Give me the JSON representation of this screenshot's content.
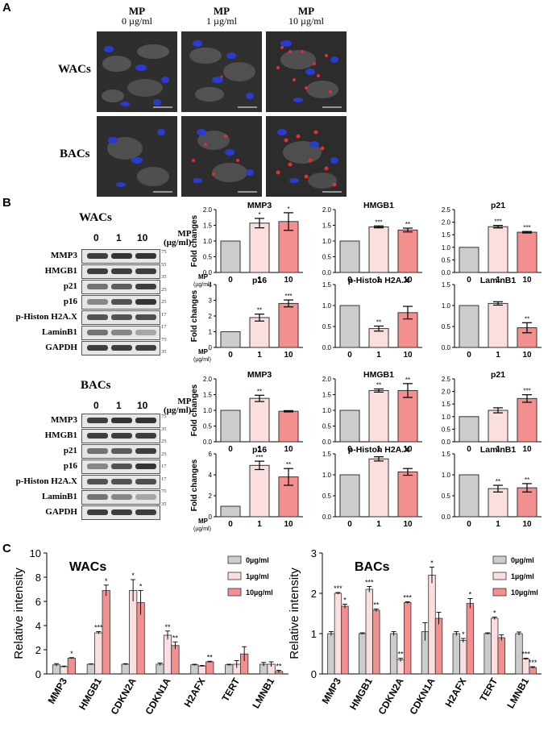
{
  "panel_letters": {
    "a": "A",
    "b": "B",
    "c": "C"
  },
  "panel_a": {
    "columns": [
      {
        "title": "MP",
        "conc": "0 µg/ml"
      },
      {
        "title": "MP",
        "conc": "1 µg/ml"
      },
      {
        "title": "MP",
        "conc": "10 µg/ml"
      }
    ],
    "rows": [
      "WACs",
      "BACs"
    ]
  },
  "panel_b": {
    "wacs": {
      "title": "WACs",
      "lanes": [
        "0",
        "1",
        "10"
      ],
      "mp_label": "MP",
      "unit": "(µg/ml)",
      "proteins": [
        "MMP3",
        "HMGB1",
        "p21",
        "p16",
        "p-Histon H2A.X",
        "LaminB1",
        "GAPDH"
      ],
      "kda": [
        "75",
        "55",
        "35",
        "25",
        "25",
        "17",
        "17",
        "75",
        "35"
      ]
    },
    "bacs": {
      "title": "BACs",
      "lanes": [
        "0",
        "1",
        "10"
      ],
      "mp_label": "MP",
      "unit": "(µg/ml)",
      "proteins": [
        "MMP3",
        "HMGB1",
        "p21",
        "p16",
        "p-Histon H2A.X",
        "LaminB1",
        "GAPDH"
      ],
      "kda": [
        "75",
        "35",
        "25",
        "25",
        "17",
        "17",
        "75",
        "35"
      ]
    },
    "y_axis_label": "Fold changes",
    "x_axis_mp": "MP",
    "x_axis_unit": "(µg/ml)"
  },
  "panel_c": {
    "legend": [
      "0µg/ml",
      "1µg/ml",
      "10µg/ml"
    ],
    "ylabel": "Relative intensity",
    "categories": [
      "MMP3",
      "HMGB1",
      "CDKN2A",
      "CDKN1A",
      "H2AFX",
      "TERT",
      "LMNB1"
    ]
  },
  "chart_data": [
    {
      "type": "bar",
      "title": "MMP3",
      "categories": [
        "0",
        "1",
        "10"
      ],
      "values": [
        1.0,
        1.57,
        1.62
      ],
      "errors": [
        0,
        0.15,
        0.28
      ],
      "sig": [
        "",
        "*",
        "*"
      ],
      "ylim": [
        0,
        2.0
      ],
      "ticks": [
        "0.0",
        "0.5",
        "1.0",
        "1.5",
        "2.0"
      ],
      "ylabel": "Fold changes",
      "group": "WACs"
    },
    {
      "type": "bar",
      "title": "HMGB1",
      "categories": [
        "0",
        "1",
        "10"
      ],
      "values": [
        1.0,
        1.45,
        1.35
      ],
      "errors": [
        0,
        0.03,
        0.06
      ],
      "sig": [
        "",
        "***",
        "**"
      ],
      "ylim": [
        0,
        2.0
      ],
      "ticks": [
        "0.0",
        "0.5",
        "1.0",
        "1.5",
        "2.0"
      ],
      "group": "WACs"
    },
    {
      "type": "bar",
      "title": "p21",
      "categories": [
        "0",
        "1",
        "10"
      ],
      "values": [
        1.0,
        1.82,
        1.6
      ],
      "errors": [
        0,
        0.05,
        0.03
      ],
      "sig": [
        "",
        "***",
        "***"
      ],
      "ylim": [
        0,
        2.5
      ],
      "ticks": [
        "0.0",
        "0.5",
        "1.0",
        "1.5",
        "2.0",
        "2.5"
      ],
      "group": "WACs"
    },
    {
      "type": "bar",
      "title": "p16",
      "categories": [
        "0",
        "1",
        "10"
      ],
      "values": [
        1.0,
        1.9,
        2.8
      ],
      "errors": [
        0,
        0.22,
        0.22
      ],
      "sig": [
        "",
        "**",
        "***"
      ],
      "ylim": [
        0,
        4
      ],
      "ticks": [
        "0",
        "1",
        "2",
        "3",
        "4"
      ],
      "ylabel": "Fold changes",
      "group": "WACs"
    },
    {
      "type": "bar",
      "title": "p-Histon H2A.X",
      "categories": [
        "0",
        "1",
        "10"
      ],
      "values": [
        1.0,
        0.45,
        0.83
      ],
      "errors": [
        0,
        0.06,
        0.15
      ],
      "sig": [
        "",
        "**",
        ""
      ],
      "ylim": [
        0,
        1.5
      ],
      "ticks": [
        "0.0",
        "0.5",
        "1.0",
        "1.5"
      ],
      "group": "WACs"
    },
    {
      "type": "bar",
      "title": "LaminB1",
      "categories": [
        "0",
        "1",
        "10"
      ],
      "values": [
        1.0,
        1.05,
        0.47
      ],
      "errors": [
        0,
        0.04,
        0.12
      ],
      "sig": [
        "",
        "",
        "**"
      ],
      "ylim": [
        0,
        1.5
      ],
      "ticks": [
        "0.0",
        "0.5",
        "1.0",
        "1.5"
      ],
      "group": "WACs"
    },
    {
      "type": "bar",
      "title": "MMP3",
      "categories": [
        "0",
        "1",
        "10"
      ],
      "values": [
        1.0,
        1.38,
        0.97
      ],
      "errors": [
        0,
        0.1,
        0.02
      ],
      "sig": [
        "",
        "**",
        ""
      ],
      "ylim": [
        0,
        2.0
      ],
      "ticks": [
        "0.0",
        "0.5",
        "1.0",
        "1.5",
        "2.0"
      ],
      "ylabel": "Fold changes",
      "group": "BACs"
    },
    {
      "type": "bar",
      "title": "HMGB1",
      "categories": [
        "0",
        "1",
        "10"
      ],
      "values": [
        1.0,
        1.63,
        1.63
      ],
      "errors": [
        0,
        0.05,
        0.22
      ],
      "sig": [
        "",
        "**",
        "**"
      ],
      "ylim": [
        0,
        2.0
      ],
      "ticks": [
        "0.0",
        "0.5",
        "1.0",
        "1.5",
        "2.0"
      ],
      "group": "BACs"
    },
    {
      "type": "bar",
      "title": "p21",
      "categories": [
        "0",
        "1",
        "10"
      ],
      "values": [
        1.0,
        1.25,
        1.72
      ],
      "errors": [
        0,
        0.1,
        0.15
      ],
      "sig": [
        "",
        "",
        "***"
      ],
      "ylim": [
        0,
        2.5
      ],
      "ticks": [
        "0.0",
        "0.5",
        "1.0",
        "1.5",
        "2.0",
        "2.5"
      ],
      "group": "BACs"
    },
    {
      "type": "bar",
      "title": "p16",
      "categories": [
        "0",
        "1",
        "10"
      ],
      "values": [
        1.0,
        4.9,
        3.8
      ],
      "errors": [
        0,
        0.4,
        0.8
      ],
      "sig": [
        "",
        "***",
        "**"
      ],
      "ylim": [
        0,
        6
      ],
      "ticks": [
        "0",
        "2",
        "4",
        "6"
      ],
      "ylabel": "Fold changes",
      "group": "BACs"
    },
    {
      "type": "bar",
      "title": "p-Histon H2A.X",
      "categories": [
        "0",
        "1",
        "10"
      ],
      "values": [
        1.0,
        1.38,
        1.07
      ],
      "errors": [
        0,
        0.05,
        0.08
      ],
      "sig": [
        "",
        "",
        ""
      ],
      "ylim": [
        0,
        1.5
      ],
      "ticks": [
        "0.0",
        "0.5",
        "1.0",
        "1.5"
      ],
      "group": "BACs"
    },
    {
      "type": "bar",
      "title": "LaminB1",
      "categories": [
        "0",
        "1",
        "10"
      ],
      "values": [
        1.0,
        0.67,
        0.69
      ],
      "errors": [
        0,
        0.08,
        0.1
      ],
      "sig": [
        "",
        "**",
        "**"
      ],
      "ylim": [
        0,
        1.5
      ],
      "ticks": [
        "0.0",
        "0.5",
        "1.0",
        "1.5"
      ],
      "group": "BACs"
    },
    {
      "type": "bar",
      "title": "WACs",
      "categories": [
        "MMP3",
        "HMGB1",
        "CDKN2A",
        "CDKN1A",
        "H2AFX",
        "TERT",
        "LMNB1"
      ],
      "series": [
        {
          "name": "0µg/ml",
          "values": [
            0.75,
            0.8,
            0.8,
            0.8,
            0.75,
            0.75,
            0.8
          ],
          "errors": [
            0.1,
            0.03,
            0.05,
            0.1,
            0.05,
            0.05,
            0.15
          ],
          "sig": [
            "",
            "",
            "",
            "",
            "",
            "",
            ""
          ]
        },
        {
          "name": "1µg/ml",
          "values": [
            0.6,
            3.4,
            6.9,
            3.2,
            0.65,
            0.8,
            0.8
          ],
          "errors": [
            0.05,
            0.1,
            0.9,
            0.35,
            0.05,
            0.3,
            0.2
          ],
          "sig": [
            "",
            "***",
            "*",
            "**",
            "",
            "",
            ""
          ]
        },
        {
          "name": "10µg/ml",
          "values": [
            1.3,
            6.9,
            5.9,
            2.35,
            1.0,
            1.65,
            0.2
          ],
          "errors": [
            0.05,
            0.45,
            1.0,
            0.3,
            0.05,
            0.6,
            0.1
          ],
          "sig": [
            "*",
            "*",
            "*",
            "**",
            "**",
            "",
            "**"
          ]
        }
      ],
      "ylim": [
        0,
        10
      ],
      "ticks": [
        "0",
        "2",
        "4",
        "6",
        "8",
        "10"
      ],
      "ylabel": "Relative intensity"
    },
    {
      "type": "bar",
      "title": "BACs",
      "categories": [
        "MMP3",
        "HMGB1",
        "CDKN2A",
        "CDKN1A",
        "H2AFX",
        "TERT",
        "LMNB1"
      ],
      "series": [
        {
          "name": "0µg/ml",
          "values": [
            1.0,
            1.0,
            1.0,
            1.05,
            1.0,
            1.0,
            1.0
          ],
          "errors": [
            0.05,
            0.02,
            0.05,
            0.22,
            0.05,
            0.02,
            0.04
          ],
          "sig": [
            "",
            "",
            "",
            "",
            "",
            "",
            ""
          ]
        },
        {
          "name": "1µg/ml",
          "values": [
            2.0,
            2.1,
            0.35,
            2.45,
            0.83,
            1.38,
            0.37
          ],
          "errors": [
            0.02,
            0.07,
            0.04,
            0.2,
            0.05,
            0.03,
            0.02
          ],
          "sig": [
            "***",
            "***",
            "**",
            "*",
            "*",
            "*",
            "***"
          ]
        },
        {
          "name": "10µg/ml",
          "values": [
            1.68,
            1.58,
            1.77,
            1.38,
            1.75,
            0.9,
            0.16
          ],
          "errors": [
            0.05,
            0.03,
            0.02,
            0.15,
            0.12,
            0.07,
            0.02
          ],
          "sig": [
            "*",
            "**",
            "***",
            "",
            "*",
            "",
            "***"
          ]
        }
      ],
      "ylim": [
        0,
        3
      ],
      "ticks": [
        "0",
        "1",
        "2",
        "3"
      ],
      "ylabel": "Relative intensity"
    }
  ],
  "colors": {
    "control": "#cccccc",
    "low": "#fbdede",
    "high": "#f48f8f"
  }
}
